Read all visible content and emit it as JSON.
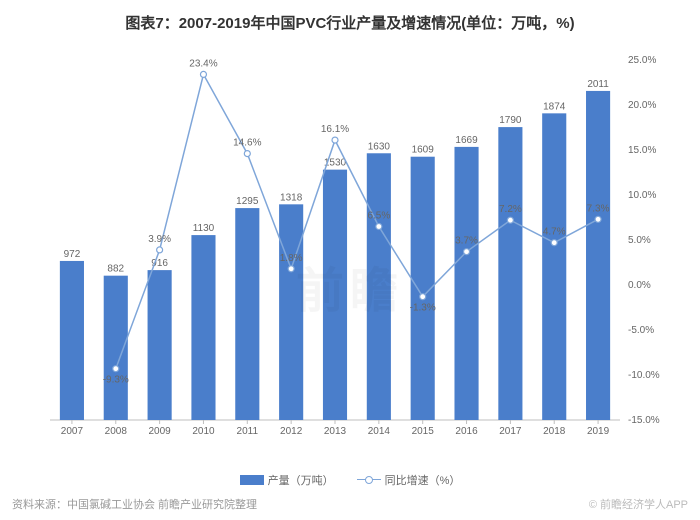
{
  "title": "图表7：2007-2019年中国PVC行业产量及增速情况(单位：万吨，%)",
  "source_label": "资料来源：中国氯碱工业协会 前瞻产业研究院整理",
  "watermark_center": "前瞻",
  "watermark_right": "© 前瞻经济学人APP",
  "chart": {
    "type": "bar+line",
    "categories": [
      "2007",
      "2008",
      "2009",
      "2010",
      "2011",
      "2012",
      "2013",
      "2014",
      "2015",
      "2016",
      "2017",
      "2018",
      "2019"
    ],
    "bar_series": {
      "name": "产量（万吨）",
      "values": [
        972,
        882,
        916,
        1130,
        1295,
        1318,
        1530,
        1630,
        1609,
        1669,
        1790,
        1874,
        2011
      ],
      "color": "#4a7ecb"
    },
    "line_series": {
      "name": "同比增速（%）",
      "values": [
        null,
        -9.3,
        3.9,
        23.4,
        14.6,
        1.8,
        16.1,
        6.5,
        -1.3,
        3.7,
        7.2,
        4.7,
        7.3
      ],
      "line_color": "#7fa6d9",
      "marker_fill": "#ffffff",
      "marker_stroke": "#7fa6d9",
      "marker_radius": 3
    },
    "bar_y_max": 2200,
    "line_axis": {
      "min": -15,
      "max": 25,
      "step": 5,
      "format_suffix": ".0%"
    },
    "axis_line_color": "#bfbfbf",
    "grid_color": "#eeeeee",
    "bar_width_ratio": 0.55,
    "label_fontsize": 10,
    "title_fontsize": 15,
    "background_color": "#ffffff"
  }
}
